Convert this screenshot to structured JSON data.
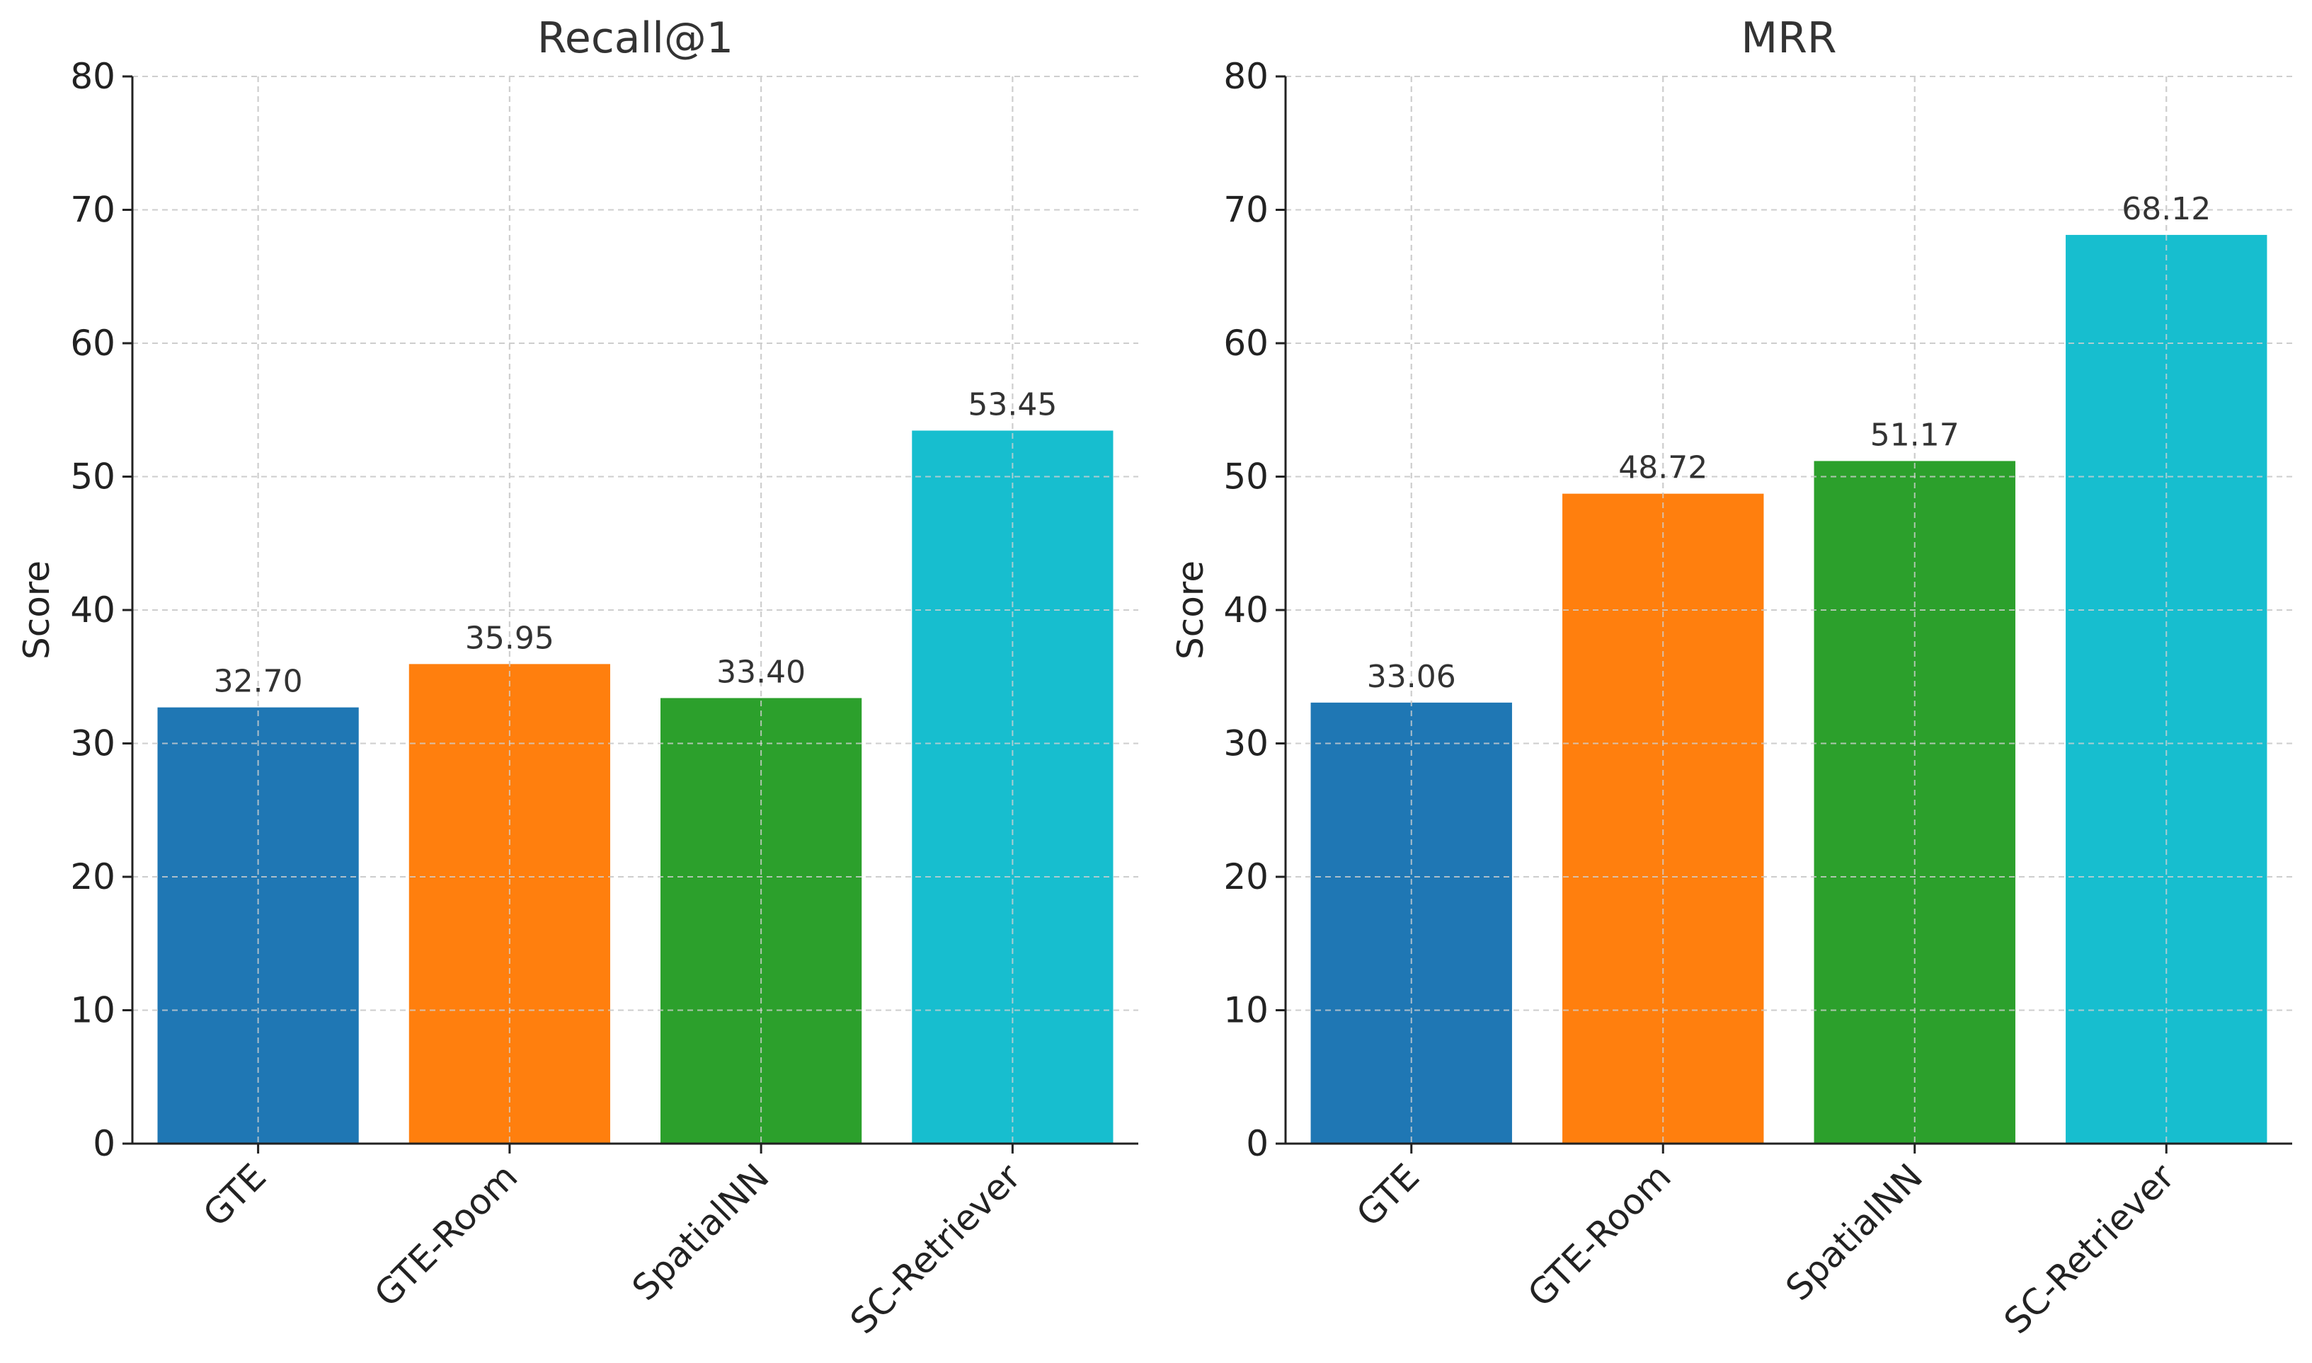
{
  "chart_data": [
    {
      "type": "bar",
      "title": "Recall@1",
      "xlabel": "",
      "ylabel": "Score",
      "ylim": [
        0,
        80
      ],
      "yticks": [
        "0",
        "10",
        "20",
        "30",
        "40",
        "50",
        "60",
        "70",
        "80"
      ],
      "grid": true,
      "categories": [
        "GTE",
        "GTE-Room",
        "SpatialNN",
        "SC-Retriever"
      ],
      "values": [
        32.7,
        35.95,
        33.4,
        53.45
      ],
      "value_labels": [
        "32.70",
        "35.95",
        "33.40",
        "53.45"
      ],
      "colors": [
        "#1f77b4",
        "#ff7f0e",
        "#2ca02c",
        "#17becf"
      ]
    },
    {
      "type": "bar",
      "title": "MRR",
      "xlabel": "",
      "ylabel": "Score",
      "ylim": [
        0,
        80
      ],
      "yticks": [
        "0",
        "10",
        "20",
        "30",
        "40",
        "50",
        "60",
        "70",
        "80"
      ],
      "grid": true,
      "categories": [
        "GTE",
        "GTE-Room",
        "SpatialNN",
        "SC-Retriever"
      ],
      "values": [
        33.06,
        48.72,
        51.17,
        68.12
      ],
      "value_labels": [
        "33.06",
        "48.72",
        "51.17",
        "68.12"
      ],
      "colors": [
        "#1f77b4",
        "#ff7f0e",
        "#2ca02c",
        "#17becf"
      ]
    }
  ]
}
